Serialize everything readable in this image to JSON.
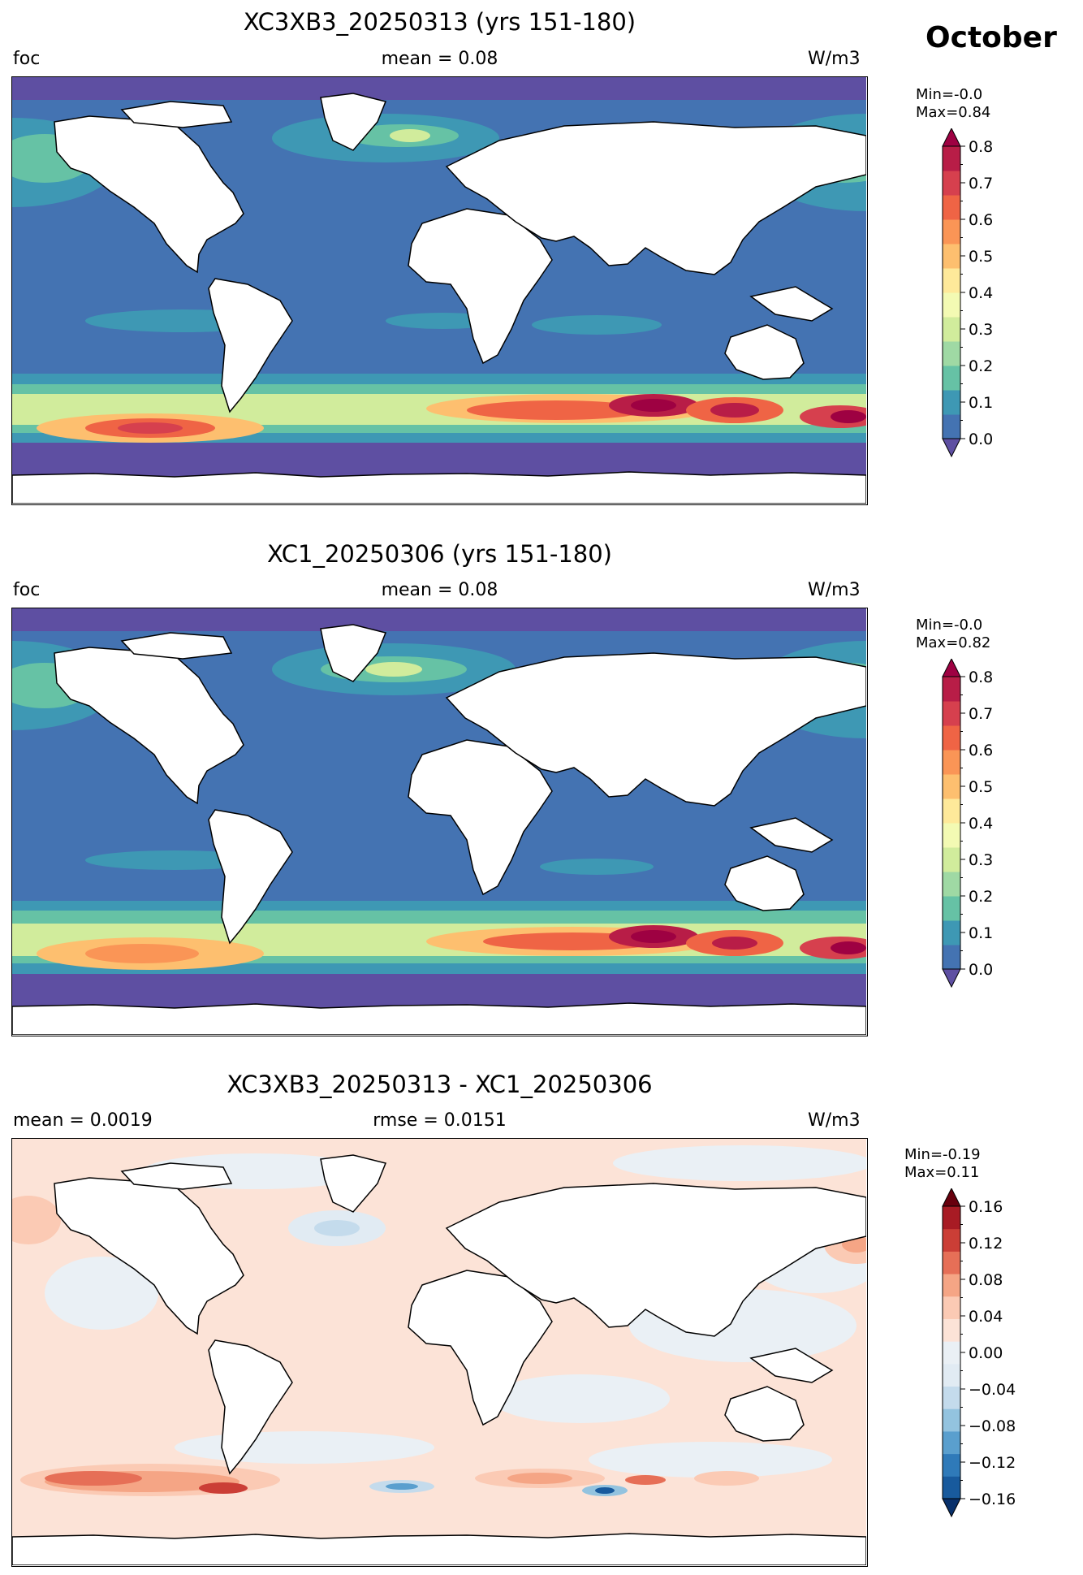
{
  "month": "October",
  "panels": [
    {
      "title": "XC3XB3_20250313 (yrs 151-180)",
      "left_label": "foc",
      "center_label": "mean = 0.08",
      "right_label": "W/m3",
      "min_text": "Min=-0.0",
      "max_text": "Max=0.84"
    },
    {
      "title": "XC1_20250306 (yrs 151-180)",
      "left_label": "foc",
      "center_label": "mean = 0.08",
      "right_label": "W/m3",
      "min_text": "Min=-0.0",
      "max_text": "Max=0.82"
    },
    {
      "title": "XC3XB3_20250313 - XC1_20250306",
      "left_label": "mean = 0.0019",
      "center_label": "rmse = 0.0151",
      "right_label": "W/m3",
      "min_text": "Min=-0.19",
      "max_text": "Max=0.11"
    }
  ],
  "chart_data": [
    {
      "type": "heatmap",
      "title": "XC3XB3_20250313 (yrs 151-180)",
      "variable": "foc",
      "units": "W/m3",
      "mean": 0.08,
      "min": -0.0,
      "max": 0.84,
      "colormap": "Spectral_r",
      "colorbar_ticks": [
        "0.0",
        "0.1",
        "0.2",
        "0.3",
        "0.4",
        "0.5",
        "0.6",
        "0.7",
        "0.8"
      ],
      "colorbar_range": [
        0.0,
        0.8
      ],
      "colorbar_extend": "both",
      "colors": [
        "#5e4fa2",
        "#4473b2",
        "#3e98b4",
        "#66c2a5",
        "#9fd9a4",
        "#d1ec9c",
        "#f3fab3",
        "#fee99a",
        "#fdbf6f",
        "#fa9556",
        "#ef6445",
        "#d6404e",
        "#b81d47",
        "#9e0142"
      ]
    },
    {
      "type": "heatmap",
      "title": "XC1_20250306 (yrs 151-180)",
      "variable": "foc",
      "units": "W/m3",
      "mean": 0.08,
      "min": -0.0,
      "max": 0.82,
      "colormap": "Spectral_r",
      "colorbar_ticks": [
        "0.0",
        "0.1",
        "0.2",
        "0.3",
        "0.4",
        "0.5",
        "0.6",
        "0.7",
        "0.8"
      ],
      "colorbar_range": [
        0.0,
        0.8
      ],
      "colorbar_extend": "both",
      "colors": [
        "#5e4fa2",
        "#4473b2",
        "#3e98b4",
        "#66c2a5",
        "#9fd9a4",
        "#d1ec9c",
        "#f3fab3",
        "#fee99a",
        "#fdbf6f",
        "#fa9556",
        "#ef6445",
        "#d6404e",
        "#b81d47",
        "#9e0142"
      ]
    },
    {
      "type": "heatmap",
      "title": "XC3XB3_20250313 - XC1_20250306",
      "units": "W/m3",
      "mean": 0.0019,
      "rmse": 0.0151,
      "min": -0.19,
      "max": 0.11,
      "colormap": "RdBu_r",
      "colorbar_ticks": [
        "−0.16",
        "−0.12",
        "−0.08",
        "−0.04",
        "0.00",
        "0.04",
        "0.08",
        "0.12",
        "0.16"
      ],
      "colorbar_range": [
        -0.16,
        0.16
      ],
      "colorbar_extend": "both",
      "colors": [
        "#08306b",
        "#185a9d",
        "#2f7ab9",
        "#5a9fce",
        "#93c3df",
        "#c4dbec",
        "#e1ebf3",
        "#eaf0f5",
        "#fce3d7",
        "#fbcab4",
        "#f5a585",
        "#e66f57",
        "#cb3e36",
        "#a81b24",
        "#67000d"
      ]
    }
  ]
}
